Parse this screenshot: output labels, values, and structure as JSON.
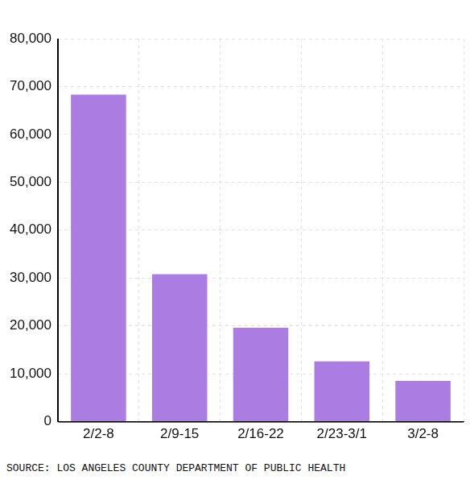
{
  "chart_data": {
    "type": "bar",
    "source": "SOURCE: LOS ANGELES COUNTY DEPARTMENT OF PUBLIC HEALTH",
    "categories": [
      "2/2-8",
      "2/9-15",
      "2/16-22",
      "2/23-3/1",
      "3/2-8"
    ],
    "values": [
      68300,
      30800,
      19600,
      12600,
      8500
    ],
    "color": "#ab7de3",
    "ylim": [
      0,
      80000
    ],
    "yticks": [
      0,
      10000,
      20000,
      30000,
      40000,
      50000,
      60000,
      70000,
      80000
    ],
    "grid": true
  }
}
